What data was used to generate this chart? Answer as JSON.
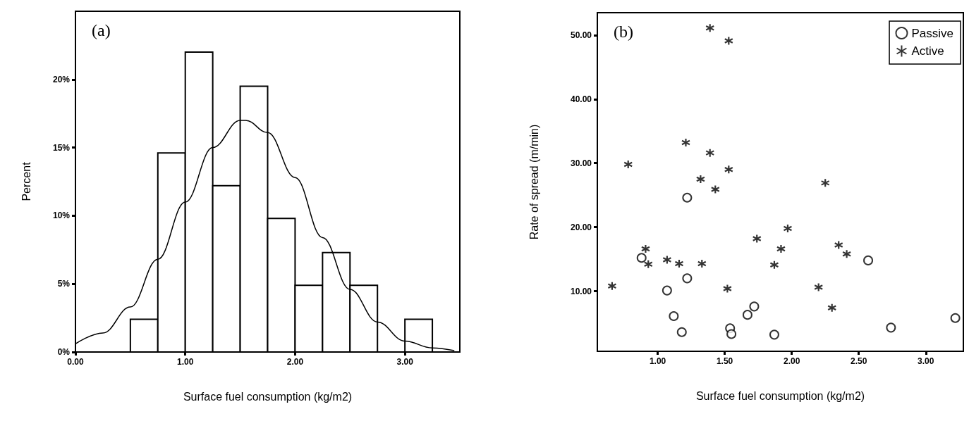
{
  "chart_data": [
    {
      "type": "histogram",
      "title": "(a)",
      "xlabel": "Surface fuel consumption (kg/m2)",
      "ylabel": "Percent",
      "bins": [
        0.5,
        0.75,
        1.0,
        1.25,
        1.5,
        1.75,
        2.0,
        2.25,
        2.5,
        2.75,
        3.0,
        3.25
      ],
      "values": [
        2.4,
        14.6,
        22.0,
        12.2,
        19.5,
        9.8,
        4.9,
        7.3,
        4.9,
        0,
        2.4
      ],
      "color": "#000000",
      "series": [
        {
          "type": "line",
          "color": "#000000",
          "x": [
            0,
            0.25,
            0.5,
            0.75,
            1.0,
            1.25,
            1.5,
            1.55,
            1.75,
            2.0,
            2.25,
            2.5,
            2.75,
            3.0,
            3.25,
            3.45
          ],
          "values": [
            0.6,
            1.4,
            3.3,
            6.8,
            11.0,
            15.0,
            17.0,
            17.0,
            16.1,
            12.8,
            8.4,
            4.6,
            2.2,
            0.8,
            0.3,
            0.1
          ]
        }
      ],
      "xlim": [
        0,
        3.5
      ],
      "ylim": [
        0,
        25
      ],
      "xticks": [
        {
          "value": 0,
          "label": "0.00"
        },
        {
          "value": 1,
          "label": "1.00"
        },
        {
          "value": 2,
          "label": "2.00"
        },
        {
          "value": 3,
          "label": "3.00"
        }
      ],
      "yticks": [
        {
          "value": 0,
          "label": "0%"
        },
        {
          "value": 5,
          "label": "5%"
        },
        {
          "value": 10,
          "label": "10%"
        },
        {
          "value": 15,
          "label": "15%"
        },
        {
          "value": 20,
          "label": "20%"
        }
      ],
      "grid": false,
      "legend": false
    },
    {
      "type": "scatter",
      "title": "(b)",
      "xlabel": "Surface fuel consumption (kg/m2)",
      "ylabel": "Rate of spread (m/min)",
      "series": [
        {
          "name": "Passive",
          "marker": "circle",
          "color": "#000000",
          "x": [
            1.22,
            0.88,
            1.07,
            1.22,
            1.12,
            1.18,
            1.54,
            1.55,
            1.67,
            1.72,
            1.87,
            2.57,
            2.74,
            3.22
          ],
          "values": [
            24.6,
            15.2,
            10.1,
            12.0,
            6.1,
            3.6,
            4.2,
            3.3,
            6.3,
            7.6,
            3.2,
            14.8,
            4.3,
            5.8
          ]
        },
        {
          "name": "Active",
          "marker": "cross",
          "color": "#000000",
          "x": [
            1.39,
            1.53,
            1.21,
            1.39,
            1.53,
            1.32,
            1.43,
            2.25,
            0.66,
            0.91,
            0.93,
            1.07,
            1.16,
            1.33,
            1.52,
            1.74,
            1.97,
            1.92,
            1.87,
            2.2,
            2.3,
            2.35,
            2.41,
            0.78
          ],
          "values": [
            51.1,
            49.1,
            33.2,
            31.6,
            29.0,
            27.5,
            25.9,
            26.9,
            10.8,
            16.6,
            14.2,
            14.9,
            14.3,
            14.3,
            10.4,
            18.2,
            19.8,
            16.6,
            14.1,
            10.6,
            7.4,
            17.2,
            15.8,
            29.8
          ]
        }
      ],
      "xlim": [
        0.55,
        3.28
      ],
      "ylim": [
        0.6,
        53.5
      ],
      "xticks": [
        {
          "value": 1,
          "label": "1.00"
        },
        {
          "value": 1.5,
          "label": "1.50"
        },
        {
          "value": 2,
          "label": "2.00"
        },
        {
          "value": 2.5,
          "label": "2.50"
        },
        {
          "value": 3,
          "label": "3.00"
        }
      ],
      "yticks": [
        {
          "value": 10,
          "label": "10.00"
        },
        {
          "value": 20,
          "label": "20.00"
        },
        {
          "value": 30,
          "label": "30.00"
        },
        {
          "value": 40,
          "label": "40.00"
        },
        {
          "value": 50,
          "label": "50.00"
        }
      ],
      "grid": false,
      "legend": "top right"
    }
  ]
}
